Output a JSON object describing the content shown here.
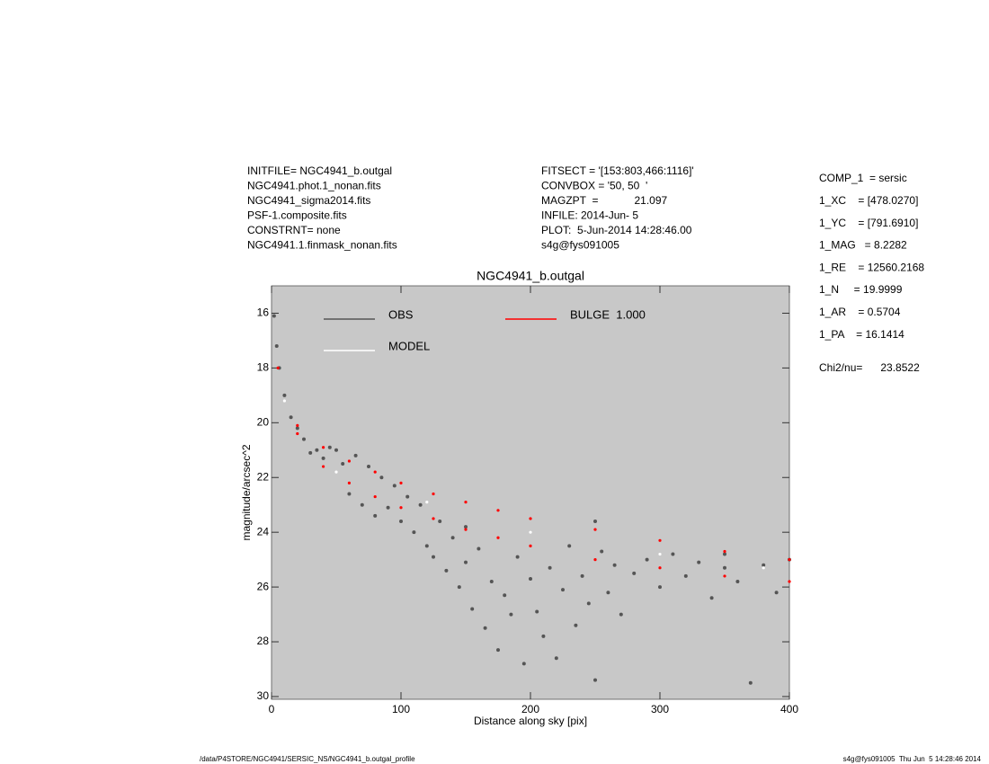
{
  "chart_data": {
    "type": "scatter",
    "title": "NGC4941_b.outgal",
    "xlabel": "Distance along sky [pix]",
    "ylabel": "magnitude/arcsec^2",
    "xlim": [
      0,
      400
    ],
    "xticks": [
      0,
      100,
      200,
      300,
      400
    ],
    "ylim": [
      30.1,
      15
    ],
    "yticks": [
      16,
      18,
      20,
      22,
      24,
      26,
      28,
      30
    ],
    "background": "#c8c8c8",
    "header_left": [
      "INITFILE= NGC4941_b.outgal",
      "NGC4941.phot.1_nonan.fits",
      "NGC4941_sigma2014.fits",
      "PSF-1.composite.fits",
      "CONSTRNT= none",
      "NGC4941.1.finmask_nonan.fits"
    ],
    "header_middle": [
      "FITSECT = '[153:803,466:1116]'",
      "CONVBOX = '50, 50  '",
      "MAGZPT  =            21.097",
      "INFILE: 2014-Jun- 5",
      "PLOT:  5-Jun-2014 14:28:46.00",
      "s4g@fys091005"
    ],
    "parameters": [
      "COMP_1  = sersic",
      "1_XC    = [478.0270]",
      "1_YC    = [791.6910]",
      "1_MAG   = 8.2282",
      "1_RE    = 12560.2168",
      "1_N     = 19.9999",
      "1_AR    = 0.5704",
      "1_PA    = 16.1414"
    ],
    "chi2": "Chi2/nu=      23.8522",
    "footer_left": "/data/P4STORE/NGC4941/SERSIC_NS/NGC4941_b.outgal_profile",
    "footer_right": "s4g@fys091005  Thu Jun  5 14:28:46 2014",
    "series": [
      {
        "name": "OBS",
        "color": "#555555",
        "x": [
          2,
          4,
          6,
          10,
          15,
          20,
          25,
          30,
          35,
          40,
          45,
          50,
          55,
          60,
          65,
          70,
          75,
          80,
          85,
          90,
          95,
          100,
          105,
          110,
          115,
          120,
          125,
          130,
          135,
          140,
          145,
          150,
          155,
          160,
          165,
          170,
          175,
          180,
          185,
          190,
          195,
          200,
          205,
          210,
          215,
          220,
          225,
          230,
          235,
          240,
          245,
          250,
          255,
          260,
          265,
          270,
          280,
          290,
          300,
          310,
          320,
          330,
          340,
          350,
          360,
          370,
          380,
          390,
          400,
          150,
          250,
          350
        ],
        "y": [
          16.1,
          17.2,
          18.0,
          19.0,
          19.8,
          20.2,
          20.6,
          21.1,
          21.0,
          21.3,
          20.9,
          21.0,
          21.5,
          22.6,
          21.2,
          23.0,
          21.6,
          23.4,
          22.0,
          23.1,
          22.3,
          23.6,
          22.7,
          24.0,
          23.0,
          24.5,
          24.9,
          23.6,
          25.4,
          24.2,
          26.0,
          25.1,
          26.8,
          24.6,
          27.5,
          25.8,
          28.3,
          26.3,
          27.0,
          24.9,
          28.8,
          25.7,
          26.9,
          27.8,
          25.3,
          28.6,
          26.1,
          24.5,
          27.4,
          25.6,
          26.6,
          29.4,
          24.7,
          26.2,
          25.2,
          27.0,
          25.5,
          25.0,
          26.0,
          24.8,
          25.6,
          25.1,
          26.4,
          25.3,
          25.8,
          29.5,
          25.2,
          26.2,
          25.0,
          23.8,
          23.6,
          24.8
        ]
      },
      {
        "name": "MODEL",
        "color": "#ffffff",
        "x": [
          10,
          50,
          120,
          200,
          300,
          380
        ],
        "y": [
          19.2,
          21.8,
          22.9,
          24.0,
          24.8,
          25.3
        ]
      },
      {
        "name": "BULGE  1.000",
        "color": "#ff0000",
        "x": [
          5,
          20,
          40,
          60,
          80,
          100,
          125,
          150,
          175,
          200,
          250,
          300,
          350,
          400,
          20,
          40,
          60,
          80,
          100,
          125,
          150,
          175,
          200,
          250,
          300,
          350,
          400
        ],
        "y": [
          18.0,
          20.1,
          20.9,
          21.4,
          21.8,
          22.2,
          22.6,
          22.9,
          23.2,
          23.5,
          23.9,
          24.3,
          24.7,
          25.0,
          20.4,
          21.6,
          22.2,
          22.7,
          23.1,
          23.5,
          23.9,
          24.2,
          24.5,
          25.0,
          25.3,
          25.6,
          25.8
        ]
      }
    ]
  }
}
